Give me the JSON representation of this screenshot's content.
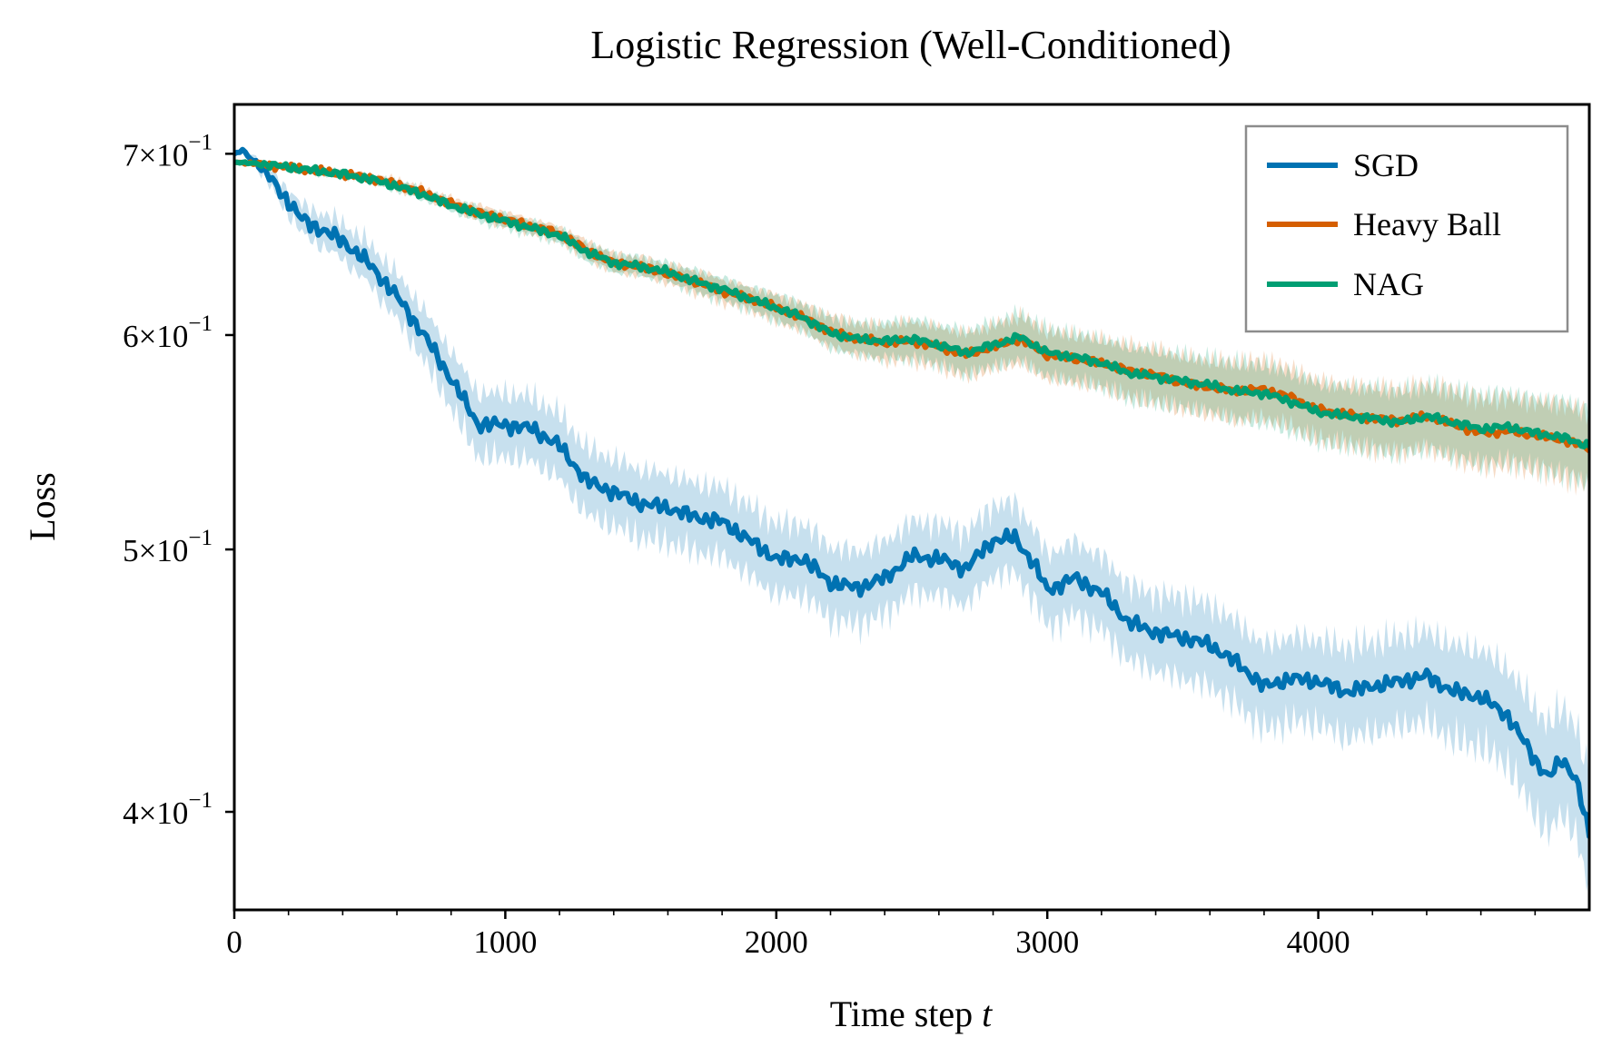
{
  "chart_data": {
    "type": "line",
    "title": "Logistic Regression (Well-Conditioned)",
    "xlabel": "Time step",
    "xlabel_var": "t",
    "ylabel": "Loss",
    "yscale": "log",
    "xlim": [
      0,
      5000
    ],
    "ylim": [
      0.368,
      0.73
    ],
    "x_ticks": [
      {
        "value": 0,
        "label": "0"
      },
      {
        "value": 1000,
        "label": "1000"
      },
      {
        "value": 2000,
        "label": "2000"
      },
      {
        "value": 3000,
        "label": "3000"
      },
      {
        "value": 4000,
        "label": "4000"
      }
    ],
    "y_ticks": [
      {
        "value": 0.4,
        "mantissa": "4",
        "exponent": "−1"
      },
      {
        "value": 0.5,
        "mantissa": "5",
        "exponent": "−1"
      },
      {
        "value": 0.6,
        "mantissa": "6",
        "exponent": "−1"
      },
      {
        "value": 0.7,
        "mantissa": "7",
        "exponent": "−1"
      }
    ],
    "legend_position": "top-right",
    "grid": false,
    "series": [
      {
        "name": "SGD",
        "color": "#0072B2",
        "x": [
          0,
          30,
          100,
          200,
          250,
          300,
          400,
          500,
          600,
          700,
          800,
          900,
          1000,
          1100,
          1200,
          1300,
          1400,
          1500,
          1600,
          1700,
          1800,
          1900,
          2000,
          2100,
          2200,
          2300,
          2400,
          2500,
          2600,
          2700,
          2800,
          2880,
          2950,
          3000,
          3100,
          3200,
          3300,
          3400,
          3500,
          3600,
          3700,
          3800,
          3900,
          4000,
          4100,
          4200,
          4300,
          4400,
          4500,
          4600,
          4700,
          4800,
          4850,
          4900,
          4950,
          5000
        ],
        "values": [
          0.7,
          0.702,
          0.692,
          0.672,
          0.662,
          0.658,
          0.65,
          0.637,
          0.62,
          0.6,
          0.578,
          0.556,
          0.556,
          0.554,
          0.546,
          0.53,
          0.525,
          0.52,
          0.518,
          0.514,
          0.512,
          0.504,
          0.496,
          0.496,
          0.486,
          0.484,
          0.488,
          0.497,
          0.496,
          0.492,
          0.504,
          0.505,
          0.494,
          0.483,
          0.488,
          0.482,
          0.47,
          0.466,
          0.464,
          0.461,
          0.454,
          0.445,
          0.448,
          0.447,
          0.443,
          0.445,
          0.447,
          0.449,
          0.443,
          0.441,
          0.434,
          0.418,
          0.412,
          0.418,
          0.412,
          0.392
        ],
        "band_halfwidth": [
          0.0,
          0.002,
          0.004,
          0.007,
          0.008,
          0.009,
          0.01,
          0.011,
          0.012,
          0.013,
          0.014,
          0.015,
          0.015,
          0.015,
          0.015,
          0.015,
          0.015,
          0.015,
          0.015,
          0.015,
          0.015,
          0.015,
          0.015,
          0.015,
          0.015,
          0.015,
          0.015,
          0.015,
          0.015,
          0.015,
          0.015,
          0.015,
          0.015,
          0.015,
          0.015,
          0.015,
          0.015,
          0.015,
          0.016,
          0.016,
          0.016,
          0.016,
          0.016,
          0.016,
          0.017,
          0.017,
          0.017,
          0.017,
          0.018,
          0.018,
          0.018,
          0.019,
          0.019,
          0.019,
          0.019,
          0.019
        ]
      },
      {
        "name": "Heavy Ball",
        "color": "#D55E00",
        "x": [
          0,
          100,
          200,
          300,
          400,
          500,
          600,
          700,
          800,
          900,
          1000,
          1100,
          1200,
          1300,
          1400,
          1500,
          1600,
          1700,
          1800,
          1900,
          2000,
          2100,
          2200,
          2300,
          2400,
          2500,
          2600,
          2700,
          2800,
          2900,
          3000,
          3100,
          3200,
          3300,
          3400,
          3500,
          3600,
          3700,
          3800,
          3900,
          4000,
          4100,
          4200,
          4300,
          4400,
          4500,
          4600,
          4700,
          4800,
          4900,
          5000
        ],
        "values": [
          0.695,
          0.694,
          0.692,
          0.69,
          0.688,
          0.686,
          0.682,
          0.677,
          0.671,
          0.666,
          0.662,
          0.658,
          0.654,
          0.645,
          0.638,
          0.636,
          0.632,
          0.628,
          0.623,
          0.619,
          0.614,
          0.609,
          0.602,
          0.598,
          0.596,
          0.597,
          0.594,
          0.59,
          0.594,
          0.598,
          0.59,
          0.588,
          0.586,
          0.582,
          0.58,
          0.576,
          0.574,
          0.572,
          0.573,
          0.569,
          0.563,
          0.561,
          0.559,
          0.558,
          0.56,
          0.556,
          0.552,
          0.553,
          0.551,
          0.549,
          0.545
        ],
        "band_halfwidth": [
          0.0,
          0.001,
          0.001,
          0.002,
          0.002,
          0.002,
          0.003,
          0.003,
          0.003,
          0.004,
          0.004,
          0.004,
          0.004,
          0.005,
          0.005,
          0.005,
          0.005,
          0.006,
          0.006,
          0.006,
          0.007,
          0.007,
          0.008,
          0.008,
          0.009,
          0.01,
          0.01,
          0.011,
          0.011,
          0.012,
          0.012,
          0.012,
          0.012,
          0.013,
          0.013,
          0.013,
          0.013,
          0.014,
          0.014,
          0.014,
          0.014,
          0.014,
          0.015,
          0.015,
          0.015,
          0.016,
          0.016,
          0.016,
          0.016,
          0.017,
          0.017
        ]
      },
      {
        "name": "NAG",
        "color": "#009E73",
        "x": [
          0,
          100,
          200,
          300,
          400,
          500,
          600,
          700,
          800,
          900,
          1000,
          1100,
          1200,
          1300,
          1400,
          1500,
          1600,
          1700,
          1800,
          1900,
          2000,
          2100,
          2200,
          2300,
          2400,
          2500,
          2600,
          2700,
          2800,
          2900,
          3000,
          3100,
          3200,
          3300,
          3400,
          3500,
          3600,
          3700,
          3800,
          3900,
          4000,
          4100,
          4200,
          4300,
          4400,
          4500,
          4600,
          4700,
          4800,
          4900,
          5000
        ],
        "values": [
          0.695,
          0.694,
          0.692,
          0.69,
          0.688,
          0.685,
          0.681,
          0.676,
          0.67,
          0.665,
          0.661,
          0.657,
          0.653,
          0.644,
          0.638,
          0.636,
          0.633,
          0.628,
          0.624,
          0.619,
          0.614,
          0.609,
          0.601,
          0.598,
          0.597,
          0.598,
          0.595,
          0.591,
          0.595,
          0.599,
          0.591,
          0.589,
          0.586,
          0.581,
          0.579,
          0.577,
          0.575,
          0.572,
          0.571,
          0.567,
          0.562,
          0.56,
          0.559,
          0.557,
          0.56,
          0.557,
          0.554,
          0.555,
          0.552,
          0.55,
          0.546
        ],
        "band_halfwidth": [
          0.0,
          0.001,
          0.001,
          0.002,
          0.002,
          0.002,
          0.003,
          0.003,
          0.003,
          0.004,
          0.004,
          0.004,
          0.004,
          0.005,
          0.005,
          0.005,
          0.005,
          0.006,
          0.006,
          0.006,
          0.007,
          0.007,
          0.008,
          0.008,
          0.009,
          0.01,
          0.01,
          0.011,
          0.011,
          0.012,
          0.012,
          0.012,
          0.012,
          0.013,
          0.013,
          0.013,
          0.013,
          0.014,
          0.014,
          0.014,
          0.014,
          0.014,
          0.015,
          0.015,
          0.015,
          0.016,
          0.016,
          0.016,
          0.016,
          0.017,
          0.017
        ]
      }
    ]
  }
}
